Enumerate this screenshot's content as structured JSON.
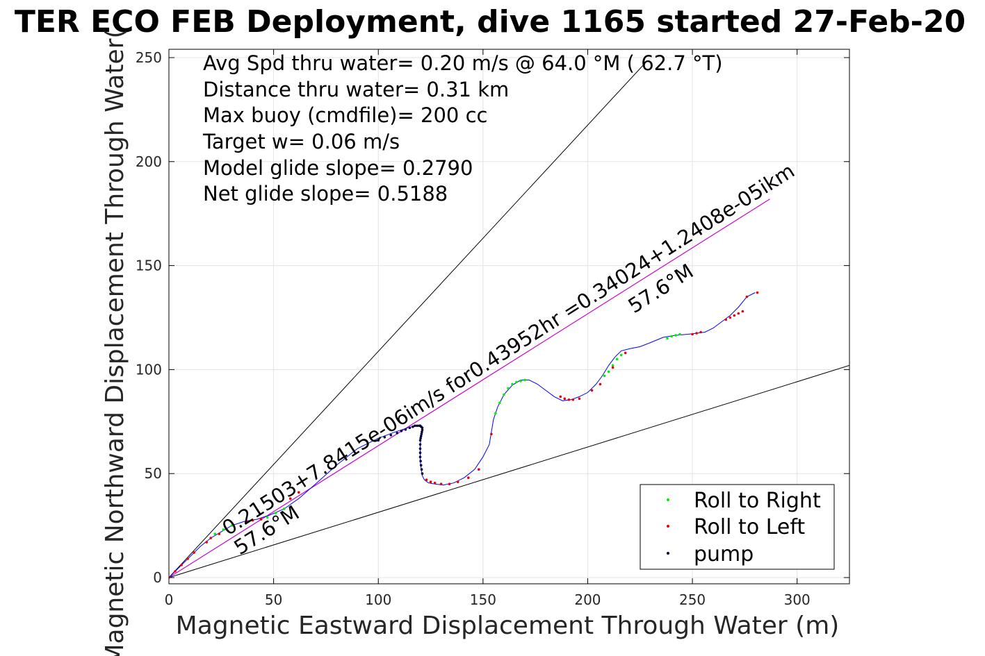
{
  "chart_data": {
    "type": "scatter",
    "title": "TER ECO FEB Deployment, dive 1165 started 27-Feb-20",
    "xlabel": "Magnetic Eastward Displacement Through Water (m)",
    "ylabel": "Magnetic Northward Displacement Through Water(",
    "xlim": [
      0,
      325
    ],
    "ylim": [
      -3,
      254
    ],
    "xticks": [
      0,
      50,
      100,
      150,
      200,
      250,
      300
    ],
    "yticks": [
      0,
      50,
      100,
      150,
      200,
      250
    ],
    "grid": true,
    "legend_position": "bottom-right",
    "annotations": [
      "Avg Spd thru water=  0.20 m/s @  64.0 °M ( 62.7 °T)",
      "Distance thru water=  0.31 km",
      "Max buoy (cmdfile)= 200 cc",
      "Target w= 0.06 m/s",
      "Model glide slope= 0.2790",
      "Net glide slope= 0.5188"
    ],
    "line_labels": {
      "current": "0.21503+7.8415e-06im/s for0.43952hr =0.34024+1.2408e-05ikm",
      "heading_upper": "57.6°M",
      "heading_lower": "57.6°M"
    },
    "reference_lines": [
      {
        "name": "upper",
        "x": [
          0,
          228
        ],
        "y": [
          0,
          248
        ]
      },
      {
        "name": "lower",
        "x": [
          0,
          325
        ],
        "y": [
          0,
          102
        ]
      },
      {
        "name": "current",
        "x": [
          0,
          287
        ],
        "y": [
          0,
          182
        ]
      }
    ],
    "track": {
      "x": [
        0,
        5,
        10,
        15,
        20,
        25,
        30,
        36,
        42,
        48,
        55,
        62,
        70,
        80,
        90,
        100,
        108,
        114,
        118,
        120.5,
        121,
        120.5,
        120,
        120,
        120,
        120.5,
        121,
        122,
        124,
        127,
        131,
        136,
        141,
        146,
        150,
        153,
        154,
        155,
        157,
        160,
        164,
        168,
        172,
        176,
        180,
        184,
        188,
        192,
        196,
        200,
        204,
        207,
        210,
        213,
        216,
        220,
        225,
        230,
        236,
        242,
        248,
        252,
        256,
        260,
        264,
        268,
        272,
        276,
        280
      ],
      "y": [
        0,
        5,
        10,
        15,
        19,
        22,
        25,
        27,
        28,
        30,
        33,
        38,
        45,
        54,
        62,
        67,
        70,
        72,
        73,
        73,
        71,
        68,
        64,
        60,
        56,
        52,
        49,
        47,
        45.5,
        45,
        44.5,
        45.5,
        48,
        52,
        58,
        64,
        70,
        76,
        82,
        88,
        92.5,
        95,
        95,
        93,
        90,
        87,
        85,
        85.5,
        87,
        89,
        93,
        97,
        102,
        106,
        109,
        110,
        111,
        113,
        115.5,
        116.5,
        117,
        117.5,
        118,
        120,
        123,
        126,
        130,
        135,
        137
      ]
    },
    "series": [
      {
        "name": "Roll to Right",
        "color": "#00ee00",
        "x": [
          22,
          26,
          30,
          47,
          51,
          55,
          156,
          158,
          160,
          162,
          164,
          166,
          168,
          170,
          208,
          210,
          212,
          214,
          216,
          238,
          240,
          242,
          244
        ],
        "y": [
          21,
          23,
          25,
          29,
          31,
          33,
          79,
          84,
          88,
          91,
          93,
          94,
          94.5,
          95,
          97,
          99,
          102,
          105,
          107,
          115,
          116,
          116.5,
          117
        ]
      },
      {
        "name": "Roll to Left",
        "color": "#ee0000",
        "x": [
          0,
          3,
          6,
          9,
          12,
          18,
          20,
          24,
          37,
          40,
          44,
          58,
          62,
          123,
          125,
          127,
          130,
          134,
          138,
          143,
          148,
          154,
          187,
          189,
          191,
          193,
          196,
          202,
          206,
          212,
          218,
          250,
          252,
          254,
          266,
          268,
          270,
          272,
          274,
          276,
          281
        ],
        "y": [
          0,
          3,
          6,
          9,
          12,
          17,
          19,
          21,
          27,
          27.5,
          28,
          38,
          41,
          47,
          46,
          45.5,
          45,
          45,
          46,
          48,
          52,
          69,
          87,
          86,
          85.5,
          85.5,
          86,
          90,
          93,
          101,
          108,
          117,
          117.5,
          118,
          124,
          125,
          126,
          127,
          128,
          135,
          137
        ]
      },
      {
        "name": "pump",
        "color": "#000033",
        "x": [
          100,
          103,
          106,
          109,
          111,
          113,
          115,
          116.5,
          117.5,
          118.5,
          119.5,
          120,
          120.5,
          121,
          121,
          120.8,
          120.6,
          120.4,
          120.2,
          120,
          120,
          120,
          120,
          120,
          120.2,
          120.4,
          120.7,
          121
        ],
        "y": [
          66,
          67.5,
          68.5,
          69.5,
          70.5,
          71.2,
          72,
          72.5,
          73,
          73,
          73,
          73,
          72.5,
          72,
          71,
          70,
          69,
          68,
          67,
          66,
          64,
          62,
          60,
          58,
          56,
          54,
          52,
          50
        ]
      }
    ]
  }
}
